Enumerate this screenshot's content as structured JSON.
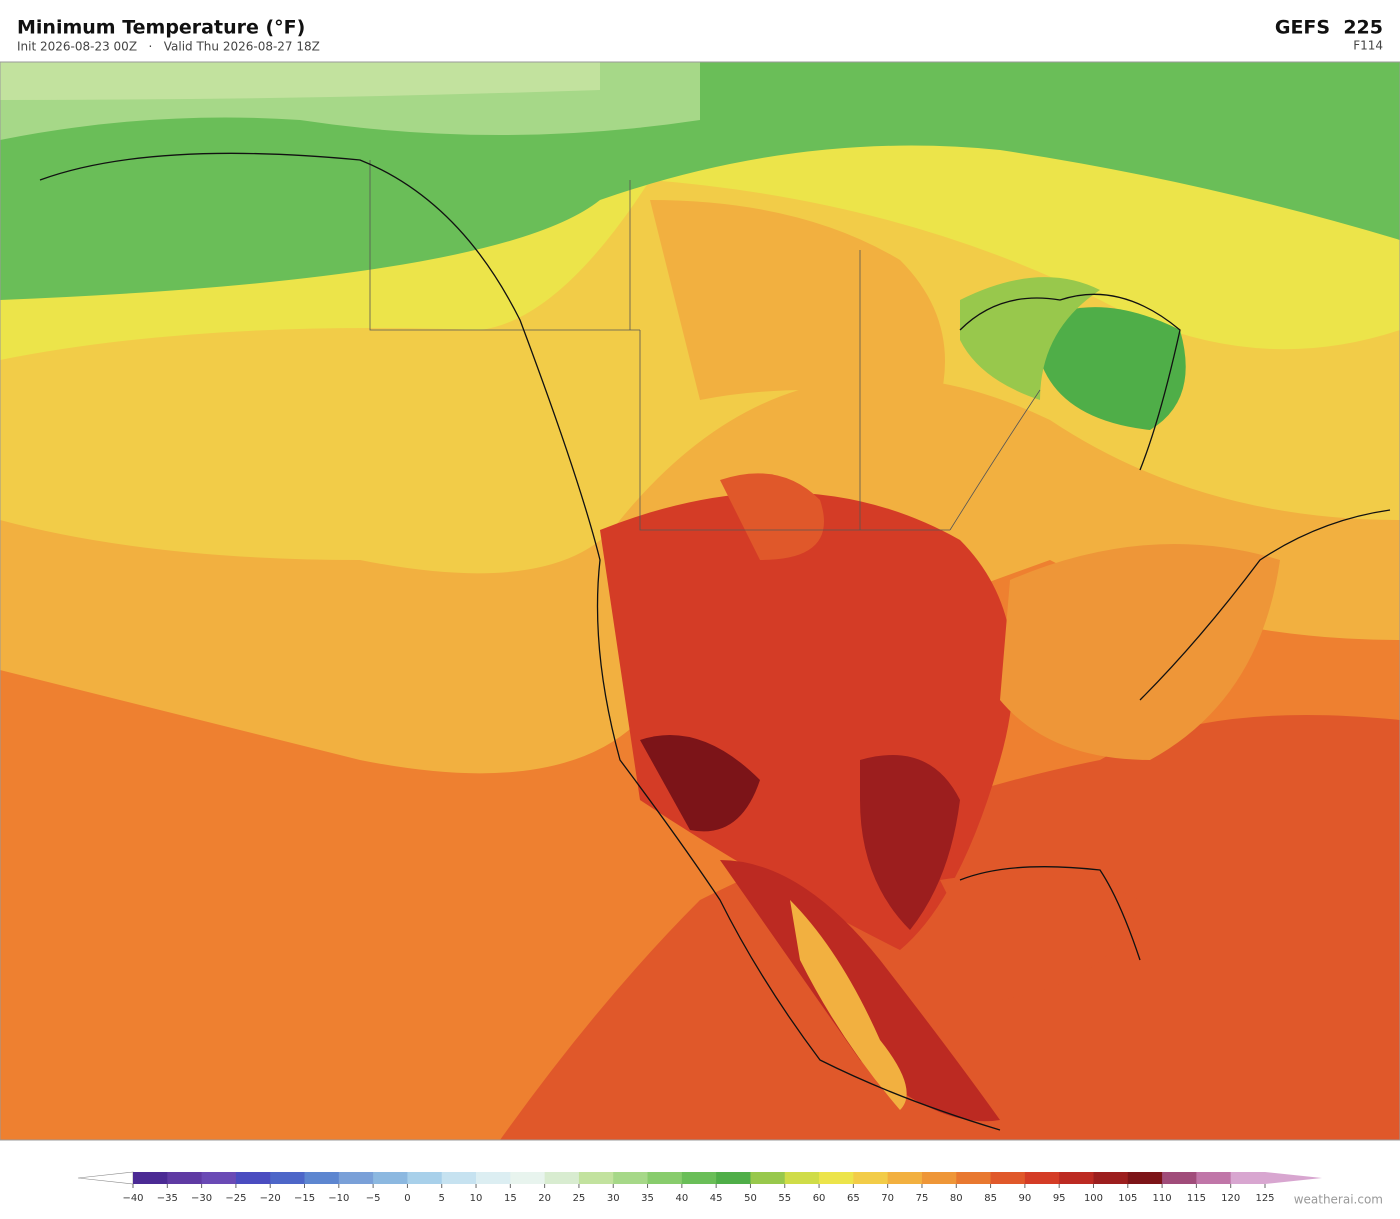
{
  "header": {
    "title": "Minimum Temperature  (°F)",
    "subtitle": "Init 2026-08-23 00Z   ·   Valid Thu 2026-08-27 18Z",
    "model": "GEFS  225",
    "forecast_hour": "F114"
  },
  "colorbar": {
    "ticks": [
      {
        "value": -40,
        "label": "−40"
      },
      {
        "value": -35,
        "label": "−35"
      },
      {
        "value": -30,
        "label": "−30"
      },
      {
        "value": -25,
        "label": "−25"
      },
      {
        "value": -20,
        "label": "−20"
      },
      {
        "value": -15,
        "label": "−15"
      },
      {
        "value": -10,
        "label": "−10"
      },
      {
        "value": -5,
        "label": "−5"
      },
      0,
      5,
      10,
      15,
      20,
      25,
      30,
      35,
      40,
      45,
      50,
      55,
      60,
      65,
      70,
      75,
      80,
      85,
      90,
      95,
      100,
      105,
      110,
      115,
      120,
      125
    ],
    "colors": [
      "#4b2a94",
      "#5f3aa3",
      "#6a4ab5",
      "#4a4cc0",
      "#4d66c8",
      "#5d86d0",
      "#7aa0d8",
      "#8cb8e0",
      "#a8d0ea",
      "#c6e2f0",
      "#dceef2",
      "#e8f4ee",
      "#d8ecd0",
      "#c2e29e",
      "#a6d888",
      "#88cc6c",
      "#6abe58",
      "#4fae48",
      "#98c84c",
      "#cfdc48",
      "#ece44a",
      "#f2cc48",
      "#f2b040",
      "#ee9638",
      "#e87830",
      "#e0582a",
      "#d43c26",
      "#bc2a22",
      "#9c1e1e",
      "#7c1418",
      "#a04c7a",
      "#c076a8",
      "#d8a6d0"
    ]
  },
  "footer": {
    "credit": "weatherai.com"
  }
}
